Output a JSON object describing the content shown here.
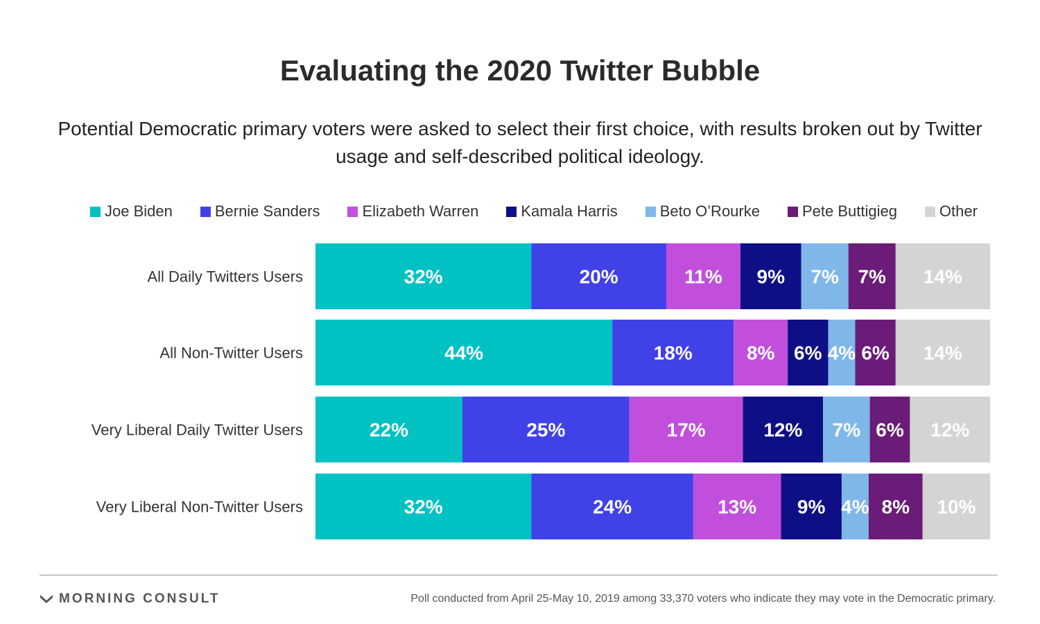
{
  "title": "Evaluating the 2020 Twitter Bubble",
  "subtitle": "Potential Democratic primary voters were asked to select their first choice, with results broken out by Twitter usage and self-described political ideology.",
  "brand": {
    "name": "MORNING CONSULT",
    "logo_icon": "morning-consult-logo-icon"
  },
  "footnote": "Poll conducted from April 25-May 10, 2019 among 33,370 voters who indicate they may vote in the Democratic primary.",
  "chart_data": {
    "type": "bar",
    "orientation": "horizontal",
    "stacked": true,
    "grid": false,
    "legend_position": "top",
    "categories": [
      "All Daily Twitters Users",
      "All Non-Twitter Users",
      "Very Liberal Daily Twitter Users",
      "Very Liberal Non-Twitter Users"
    ],
    "series": [
      {
        "name": "Joe Biden",
        "color": "#00c2c3",
        "values": [
          32,
          44,
          22,
          32
        ],
        "labels": [
          "32%",
          "44%",
          "22%",
          "32%"
        ]
      },
      {
        "name": "Bernie Sanders",
        "color": "#4141e8",
        "values": [
          20,
          18,
          25,
          24
        ],
        "labels": [
          "20%",
          "18%",
          "25%",
          "24%"
        ]
      },
      {
        "name": "Elizabeth Warren",
        "color": "#c14fdc",
        "values": [
          11,
          8,
          17,
          13
        ],
        "labels": [
          "11%",
          "8%",
          "17%",
          "13%"
        ]
      },
      {
        "name": "Kamala Harris",
        "color": "#0f0f85",
        "values": [
          9,
          6,
          12,
          9
        ],
        "labels": [
          "9%",
          "6%",
          "12%",
          "9%"
        ]
      },
      {
        "name": "Beto O’Rourke",
        "color": "#7fb8e8",
        "values": [
          7,
          4,
          7,
          4
        ],
        "labels": [
          "7%",
          "4%",
          "7%",
          "4%"
        ]
      },
      {
        "name": "Pete Buttigieg",
        "color": "#6b1b78",
        "values": [
          7,
          6,
          6,
          8
        ],
        "labels": [
          "7%",
          "6%",
          "6%",
          "8%"
        ]
      },
      {
        "name": "Other",
        "color": "#d4d4d4",
        "values": [
          14,
          14,
          12,
          10
        ],
        "labels": [
          "14%",
          "14%",
          "12%",
          "10%"
        ]
      }
    ]
  }
}
